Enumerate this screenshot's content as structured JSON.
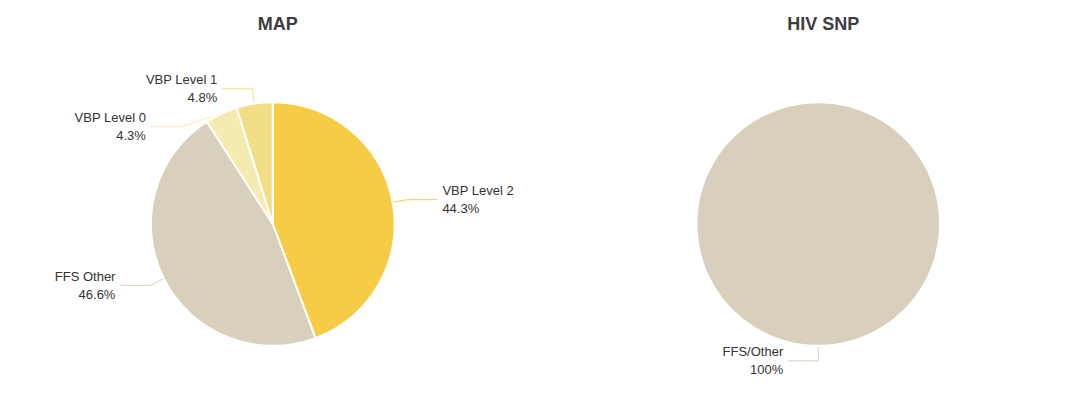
{
  "chart_data": [
    {
      "type": "pie",
      "title": "MAP",
      "categories": [
        "VBP Level 2",
        "FFS Other",
        "VBP Level 0",
        "VBP Level 1"
      ],
      "values": [
        44.3,
        46.6,
        4.3,
        4.8
      ],
      "value_labels": [
        "44.3%",
        "46.6%",
        "4.3%",
        "4.8%"
      ],
      "colors": [
        "#F7CC45",
        "#D8D0BC",
        "#F5EBB0",
        "#F2DF85"
      ],
      "data_labels": true
    },
    {
      "type": "pie",
      "title": "HIV SNP",
      "categories": [
        "FFS/Other"
      ],
      "values": [
        100
      ],
      "value_labels": [
        "100%"
      ],
      "colors": [
        "#D8D0BC"
      ],
      "data_labels": true
    }
  ]
}
